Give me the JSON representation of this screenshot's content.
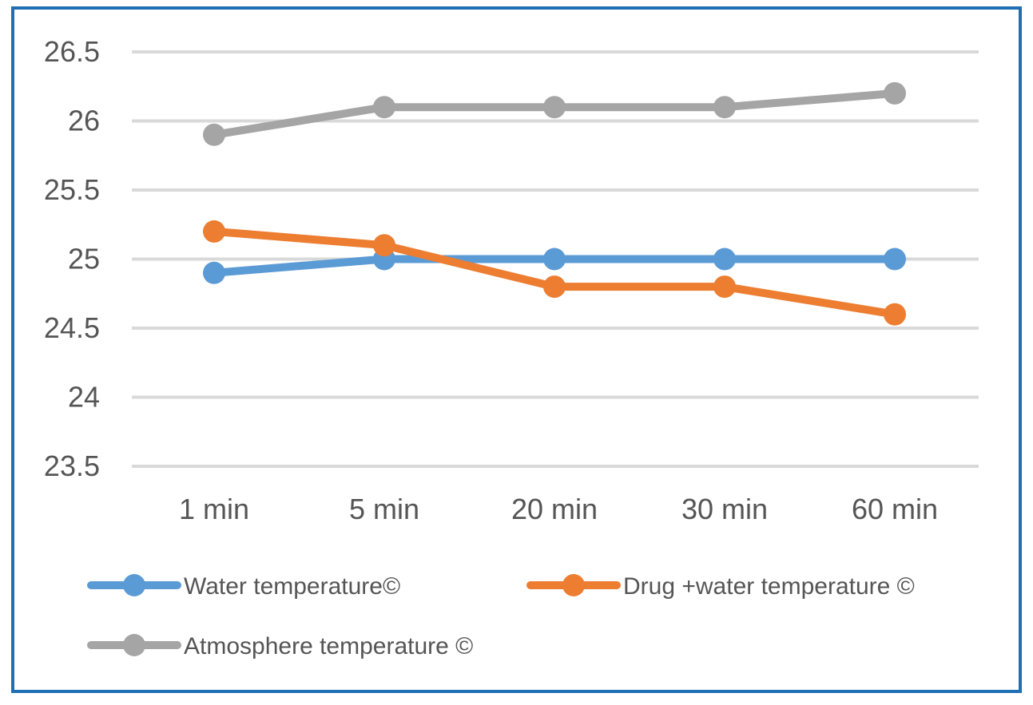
{
  "chart_data": {
    "type": "line",
    "title": "",
    "xlabel": "",
    "ylabel": "",
    "categories": [
      "1 min",
      "5 min",
      "20 min",
      "30 min",
      "60 min"
    ],
    "ylim": [
      23.5,
      26.5
    ],
    "yticks": [
      "23.5",
      "24",
      "24.5",
      "25",
      "25.5",
      "26",
      "26.5"
    ],
    "grid": true,
    "legend": "bottom",
    "series": [
      {
        "name": "Water temperature©",
        "color": "#5b9bd5",
        "values": [
          24.9,
          25.0,
          25.0,
          25.0,
          25.0
        ]
      },
      {
        "name": "Drug +water temperature ©",
        "color": "#ed7d31",
        "values": [
          25.2,
          25.1,
          24.8,
          24.8,
          24.6
        ]
      },
      {
        "name": "Atmosphere temperature ©",
        "color": "#a5a5a5",
        "values": [
          25.9,
          26.1,
          26.1,
          26.1,
          26.2
        ]
      }
    ]
  }
}
